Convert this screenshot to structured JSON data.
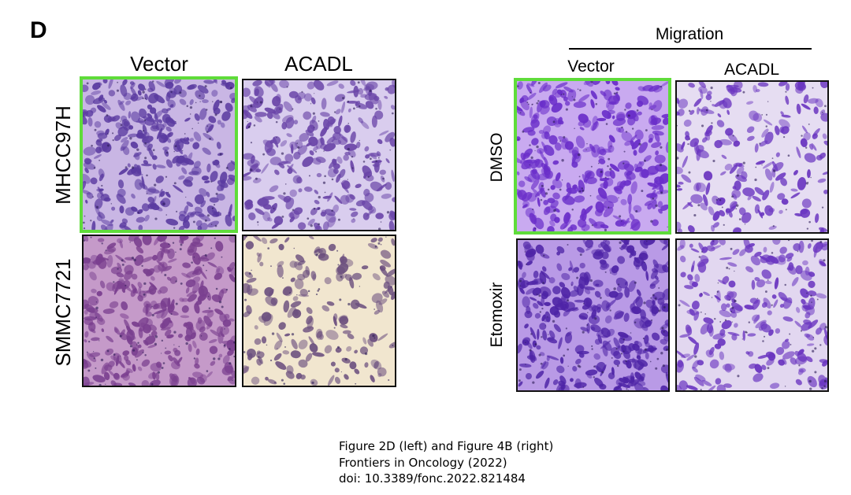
{
  "panel_letter": "D",
  "left": {
    "columns": [
      "Vector",
      "ACADL"
    ],
    "rows": [
      "MHCC97H",
      "SMMC7721"
    ],
    "tiles": [
      {
        "name": "micrograph-mhcc97h-vector",
        "fg": "#5a3aa0",
        "bg": "#c9b6e4",
        "density": 0.92,
        "highlight": true
      },
      {
        "name": "micrograph-mhcc97h-acadl",
        "fg": "#6a45a8",
        "bg": "#d9cdee",
        "density": 0.72,
        "highlight": false
      },
      {
        "name": "micrograph-smmc7721-vector",
        "fg": "#7a3f8f",
        "bg": "#c59ac9",
        "density": 0.95,
        "highlight": false
      },
      {
        "name": "micrograph-smmc7721-acadl",
        "fg": "#6b4f7e",
        "bg": "#f1e6cf",
        "density": 0.4,
        "highlight": false
      }
    ]
  },
  "right": {
    "header": "Migration",
    "columns": [
      "Vector",
      "ACADL"
    ],
    "rows": [
      "DMSO",
      "Etomoxir"
    ],
    "tiles": [
      {
        "name": "micrograph-dmso-vector",
        "fg": "#6a2ec9",
        "bg": "#c9aaf0",
        "density": 0.92,
        "highlight": true
      },
      {
        "name": "micrograph-dmso-acadl",
        "fg": "#6a35c0",
        "bg": "#e6ddf2",
        "density": 0.48,
        "highlight": false
      },
      {
        "name": "micrograph-etomoxir-vector",
        "fg": "#4e24a6",
        "bg": "#b99ae6",
        "density": 0.95,
        "highlight": false
      },
      {
        "name": "micrograph-etomoxir-acadl",
        "fg": "#6a35c0",
        "bg": "#e2d7f0",
        "density": 0.58,
        "highlight": false
      }
    ]
  },
  "caption": {
    "line1": "Figure 2D (left) and Figure 4B (right)",
    "line2": "Frontiers in Oncology (2022)",
    "line3": "doi: 10.3389/fonc.2022.821484"
  }
}
